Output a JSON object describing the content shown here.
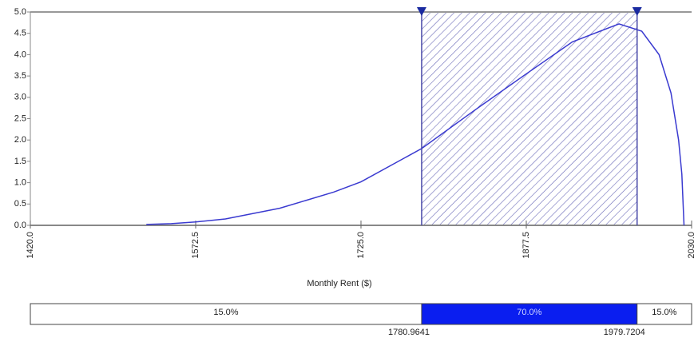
{
  "chart_data": {
    "type": "density",
    "x_label": "Monthly Rent ($)",
    "xlim": [
      1420,
      2030
    ],
    "xticks": [
      {
        "value": 1420,
        "label": "1420.0"
      },
      {
        "value": 1572.5,
        "label": "1572.5"
      },
      {
        "value": 1725,
        "label": "1725.0"
      },
      {
        "value": 1877.5,
        "label": "1877.5"
      },
      {
        "value": 2030,
        "label": "2030.0"
      }
    ],
    "ylim": [
      0,
      5
    ],
    "yticks": [
      {
        "value": 0,
        "label": "0.0"
      },
      {
        "value": 0.5,
        "label": "0.5"
      },
      {
        "value": 1,
        "label": "1.0"
      },
      {
        "value": 1.5,
        "label": "1.5"
      },
      {
        "value": 2,
        "label": "2.0"
      },
      {
        "value": 2.5,
        "label": "2.5"
      },
      {
        "value": 3,
        "label": "3.0"
      },
      {
        "value": 3.5,
        "label": "3.5"
      },
      {
        "value": 4,
        "label": "4.0"
      },
      {
        "value": 4.5,
        "label": "4.5"
      },
      {
        "value": 5,
        "label": "5.0"
      }
    ],
    "color": "#3a3ad0",
    "x": [
      1527,
      1550,
      1572.5,
      1600,
      1650,
      1700,
      1725,
      1781,
      1830,
      1877.5,
      1920,
      1963,
      1984,
      2000,
      2011,
      2018,
      2021,
      2023
    ],
    "values": [
      0.02,
      0.04,
      0.08,
      0.15,
      0.4,
      0.78,
      1.02,
      1.8,
      2.7,
      3.55,
      4.3,
      4.72,
      4.55,
      4.0,
      3.1,
      2.0,
      1.2,
      0
    ],
    "delimiters": [
      1780.9641,
      1979.7204
    ],
    "bands": {
      "values": [
        15,
        70,
        15
      ],
      "value_labels": [
        "15.0%",
        "70.0%",
        "15.0%"
      ],
      "colors": [
        "#ffffff",
        "#0a1ef0",
        "#ffffff"
      ]
    }
  }
}
